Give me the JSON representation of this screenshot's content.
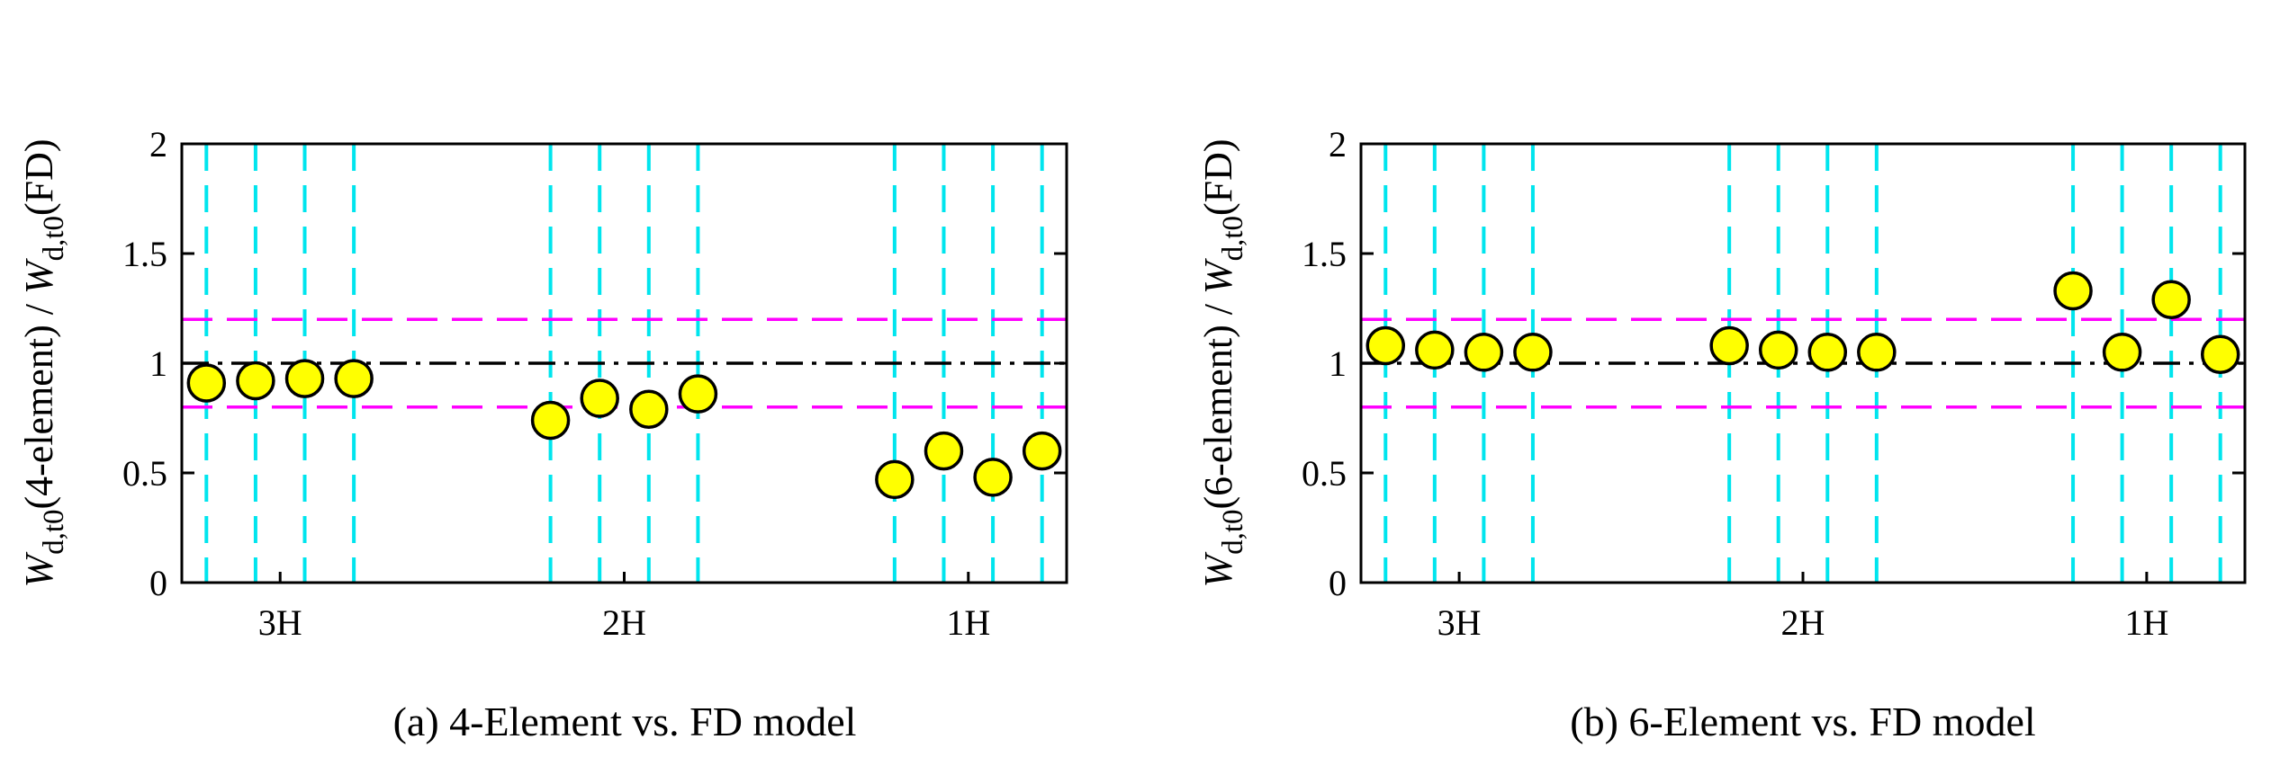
{
  "chart_data": [
    {
      "type": "scatter",
      "caption": "(a) 4-Element vs. FD model",
      "ylabel": {
        "main": "W",
        "sub1": "d,t0",
        "mid": "(4-element) / ",
        "main2": "W",
        "sub2": "d,t0",
        "tail": "(FD)"
      },
      "ylim": [
        0,
        2
      ],
      "yticks": [
        0,
        0.5,
        1,
        1.5,
        2
      ],
      "ytick_labels": [
        "0",
        "0.5",
        "1",
        "1.5",
        "2"
      ],
      "xlim": [
        0.5,
        18.5
      ],
      "group_labels": [
        {
          "label": "3H",
          "x": 2.5
        },
        {
          "label": "2H",
          "x": 9.5
        },
        {
          "label": "1H",
          "x": 16.5
        }
      ],
      "vertical_lines_x": [
        1,
        2,
        3,
        4,
        8,
        9,
        10,
        11,
        15,
        16,
        17,
        18
      ],
      "reference_line": 1.0,
      "tolerance_lines": [
        0.8,
        1.2
      ],
      "points": [
        {
          "x": 1,
          "y": 0.91
        },
        {
          "x": 2,
          "y": 0.92
        },
        {
          "x": 3,
          "y": 0.93
        },
        {
          "x": 4,
          "y": 0.93
        },
        {
          "x": 8,
          "y": 0.74
        },
        {
          "x": 9,
          "y": 0.84
        },
        {
          "x": 10,
          "y": 0.79
        },
        {
          "x": 11,
          "y": 0.86
        },
        {
          "x": 15,
          "y": 0.47
        },
        {
          "x": 16,
          "y": 0.6
        },
        {
          "x": 17,
          "y": 0.48
        },
        {
          "x": 18,
          "y": 0.6
        }
      ],
      "colors": {
        "points": "#ffff00",
        "vlines": "#00e5ee",
        "tolerance": "#ff00ff",
        "reference": "#000000"
      }
    },
    {
      "type": "scatter",
      "caption": "(b) 6-Element vs. FD model",
      "ylabel": {
        "main": "W",
        "sub1": "d,t0",
        "mid": "(6-element) / ",
        "main2": "W",
        "sub2": "d,t0",
        "tail": "(FD)"
      },
      "ylim": [
        0,
        2
      ],
      "yticks": [
        0,
        0.5,
        1,
        1.5,
        2
      ],
      "ytick_labels": [
        "0",
        "0.5",
        "1",
        "1.5",
        "2"
      ],
      "xlim": [
        0.5,
        18.5
      ],
      "group_labels": [
        {
          "label": "3H",
          "x": 2.5
        },
        {
          "label": "2H",
          "x": 9.5
        },
        {
          "label": "1H",
          "x": 16.5
        }
      ],
      "vertical_lines_x": [
        1,
        2,
        3,
        4,
        8,
        9,
        10,
        11,
        15,
        16,
        17,
        18
      ],
      "reference_line": 1.0,
      "tolerance_lines": [
        0.8,
        1.2
      ],
      "points": [
        {
          "x": 1,
          "y": 1.08
        },
        {
          "x": 2,
          "y": 1.06
        },
        {
          "x": 3,
          "y": 1.05
        },
        {
          "x": 4,
          "y": 1.05
        },
        {
          "x": 8,
          "y": 1.08
        },
        {
          "x": 9,
          "y": 1.06
        },
        {
          "x": 10,
          "y": 1.05
        },
        {
          "x": 11,
          "y": 1.05
        },
        {
          "x": 15,
          "y": 1.33
        },
        {
          "x": 16,
          "y": 1.05
        },
        {
          "x": 17,
          "y": 1.29
        },
        {
          "x": 18,
          "y": 1.04
        }
      ],
      "colors": {
        "points": "#ffff00",
        "vlines": "#00e5ee",
        "tolerance": "#ff00ff",
        "reference": "#000000"
      }
    }
  ]
}
